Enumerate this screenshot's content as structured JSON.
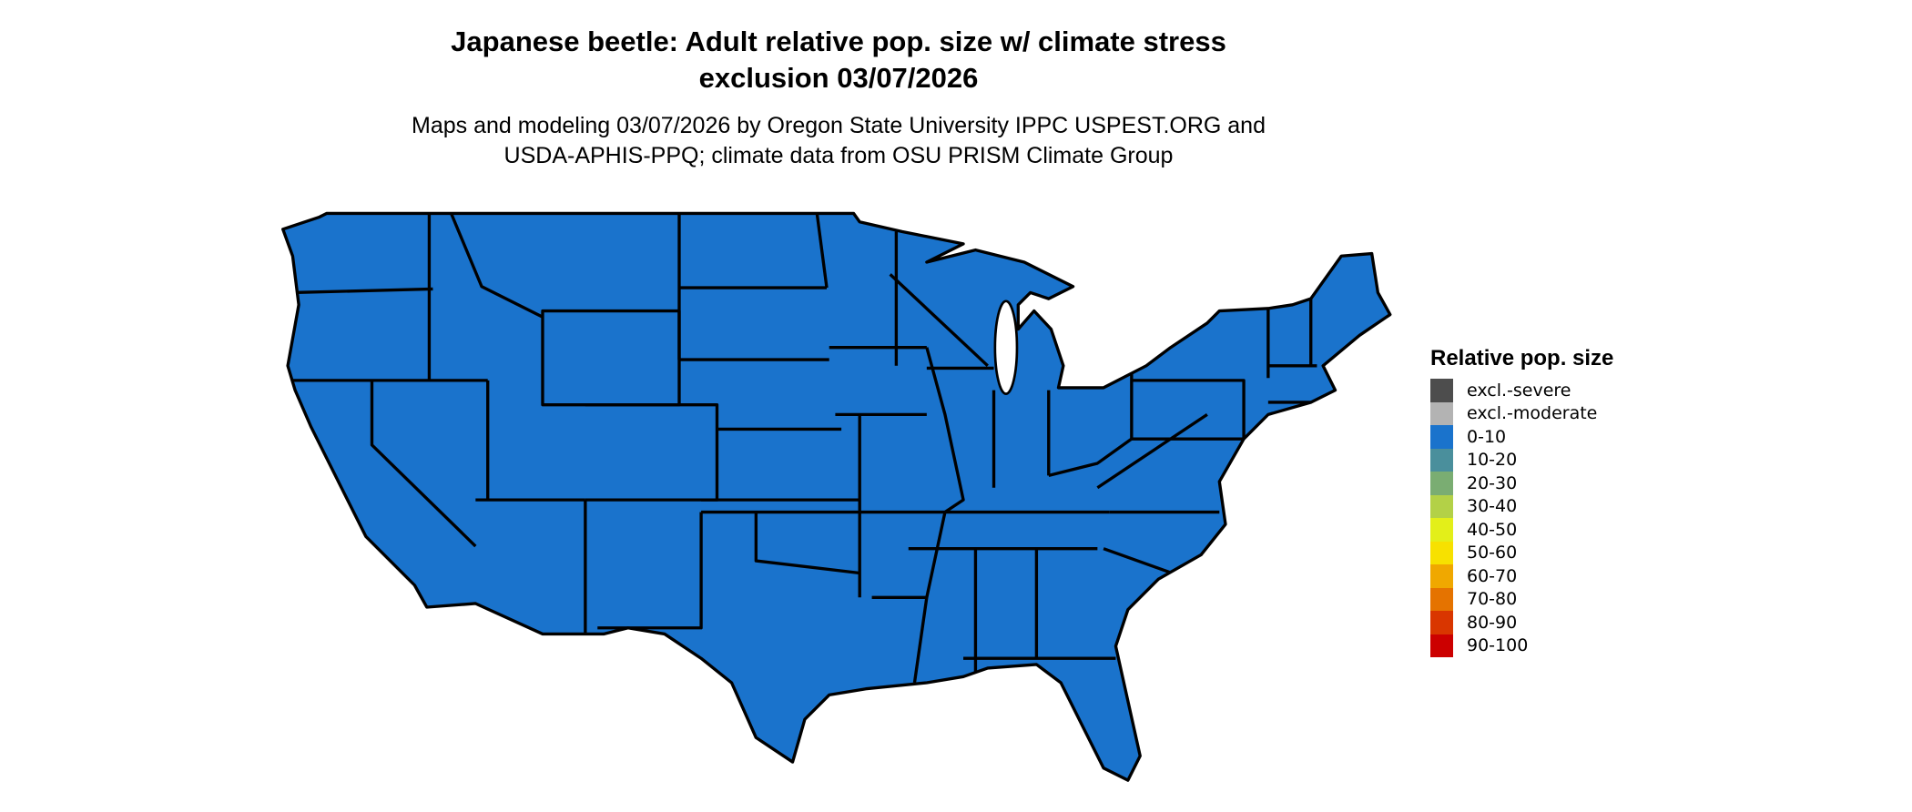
{
  "title_line1": "Japanese beetle: Adult relative pop. size w/ climate stress",
  "title_line2": "exclusion 03/07/2026",
  "subtitle_line1": "Maps and modeling 03/07/2026 by Oregon State University IPPC USPEST.ORG and",
  "subtitle_line2": "USDA-APHIS-PPQ; climate data from OSU PRISM Climate Group",
  "chart_data": {
    "type": "map",
    "region": "contiguous United States",
    "dominant_category": "0-10",
    "map_fill_color": "#1a73cc",
    "state_border_color": "#000000",
    "legend": {
      "title": "Relative pop. size",
      "placement": "right",
      "items": [
        {
          "label": "excl.-severe",
          "color": "#4d4d4d"
        },
        {
          "label": "excl.-moderate",
          "color": "#b3b3b3"
        },
        {
          "label": "0-10",
          "color": "#1a73cc"
        },
        {
          "label": "10-20",
          "color": "#4a8f9c"
        },
        {
          "label": "20-30",
          "color": "#7aad72"
        },
        {
          "label": "30-40",
          "color": "#b3d147"
        },
        {
          "label": "40-50",
          "color": "#e3ef19"
        },
        {
          "label": "50-60",
          "color": "#f7e100"
        },
        {
          "label": "60-70",
          "color": "#f0a800"
        },
        {
          "label": "70-80",
          "color": "#e57300"
        },
        {
          "label": "80-90",
          "color": "#d93600"
        },
        {
          "label": "90-100",
          "color": "#cc0000"
        }
      ]
    }
  }
}
